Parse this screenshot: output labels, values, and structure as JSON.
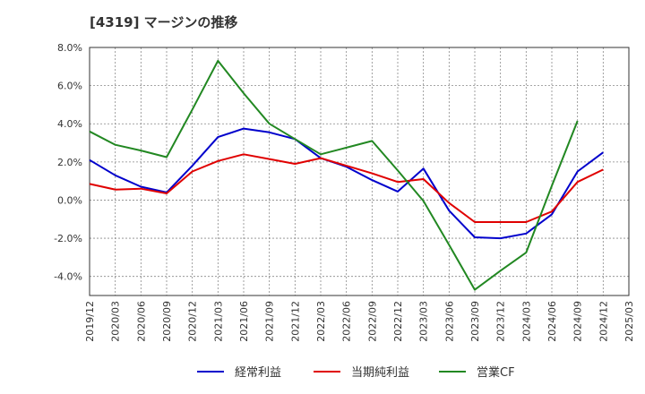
{
  "chart_data": {
    "type": "line",
    "title": "[4319]  マージンの推移",
    "x": [
      "2019/12",
      "2020/03",
      "2020/06",
      "2020/09",
      "2020/12",
      "2021/03",
      "2021/06",
      "2021/09",
      "2021/12",
      "2022/03",
      "2022/06",
      "2022/09",
      "2022/12",
      "2023/03",
      "2023/06",
      "2023/09",
      "2023/12",
      "2024/03",
      "2024/06",
      "2024/09",
      "2024/12",
      "2025/03"
    ],
    "ylim": [
      -5,
      8
    ],
    "yticks": [
      -4,
      -2,
      0,
      2,
      4,
      6,
      8
    ],
    "ytick_labels": [
      "-4.0%",
      "-2.0%",
      "0.0%",
      "2.0%",
      "4.0%",
      "6.0%",
      "8.0%"
    ],
    "grid": true,
    "legend_position": "bottom",
    "series": [
      {
        "name": "経常利益",
        "color": "#0000cc",
        "values": [
          2.1,
          1.3,
          0.7,
          0.4,
          1.8,
          3.3,
          3.75,
          3.55,
          3.2,
          2.2,
          1.75,
          1.05,
          0.45,
          1.65,
          -0.55,
          -1.95,
          -2.0,
          -1.75,
          -0.75,
          1.5,
          2.5,
          null
        ]
      },
      {
        "name": "当期純利益",
        "color": "#e00000",
        "values": [
          0.85,
          0.55,
          0.6,
          0.35,
          1.5,
          2.05,
          2.4,
          2.15,
          1.9,
          2.2,
          1.8,
          1.4,
          0.95,
          1.1,
          -0.15,
          -1.15,
          -1.15,
          -1.15,
          -0.6,
          0.95,
          1.6,
          null
        ]
      },
      {
        "name": "営業CF",
        "color": "#228822",
        "values": [
          3.6,
          2.9,
          2.6,
          2.25,
          4.75,
          7.3,
          5.6,
          4.0,
          3.2,
          2.4,
          2.75,
          3.1,
          1.55,
          -0.05,
          -2.35,
          -4.7,
          -3.7,
          -2.75,
          0.75,
          4.15,
          null,
          null
        ]
      }
    ]
  }
}
